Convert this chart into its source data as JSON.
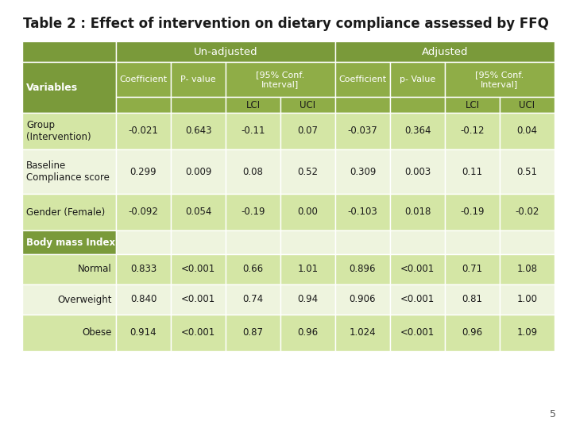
{
  "title": "Table 2 : Effect of intervention on dietary compliance assessed by FFQ",
  "title_fontsize": 12,
  "page_number": "5",
  "colors": {
    "header_dark": "#7a9a3a",
    "header_medium": "#8fad47",
    "row_light": "#d4e6a5",
    "row_white": "#eef4de",
    "text_dark": "#1a1a1a",
    "text_white": "#ffffff",
    "border": "#ffffff"
  },
  "rows": [
    {
      "label": "Group\n(Intervention)",
      "label_align": "left",
      "values": [
        "-0.021",
        "0.643",
        "-0.11",
        "0.07",
        "-0.037",
        "0.364",
        "-0.12",
        "0.04"
      ],
      "bg": "light",
      "label_bg": "light"
    },
    {
      "label": "Baseline\nCompliance score",
      "label_align": "left",
      "values": [
        "0.299",
        "0.009",
        "0.08",
        "0.52",
        "0.309",
        "0.003",
        "0.11",
        "0.51"
      ],
      "bg": "white",
      "label_bg": "white"
    },
    {
      "label": "Gender (Female)",
      "label_align": "left",
      "values": [
        "-0.092",
        "0.054",
        "-0.19",
        "0.00",
        "-0.103",
        "0.018",
        "-0.19",
        "-0.02"
      ],
      "bg": "light",
      "label_bg": "light"
    },
    {
      "label": "Body mass Index",
      "label_align": "left",
      "values": [
        "",
        "",
        "",
        "",
        "",
        "",
        "",
        ""
      ],
      "bg": "white",
      "label_bg": "green"
    },
    {
      "label": "Normal",
      "label_align": "right",
      "values": [
        "0.833",
        "<0.001",
        "0.66",
        "1.01",
        "0.896",
        "<0.001",
        "0.71",
        "1.08"
      ],
      "bg": "light",
      "label_bg": "light"
    },
    {
      "label": "Overweight",
      "label_align": "right",
      "values": [
        "0.840",
        "<0.001",
        "0.74",
        "0.94",
        "0.906",
        "<0.001",
        "0.81",
        "1.00"
      ],
      "bg": "white",
      "label_bg": "white"
    },
    {
      "label": "Obese",
      "label_align": "right",
      "values": [
        "0.914",
        "<0.001",
        "0.87",
        "0.96",
        "1.024",
        "<0.001",
        "0.96",
        "1.09"
      ],
      "bg": "light",
      "label_bg": "light"
    }
  ]
}
